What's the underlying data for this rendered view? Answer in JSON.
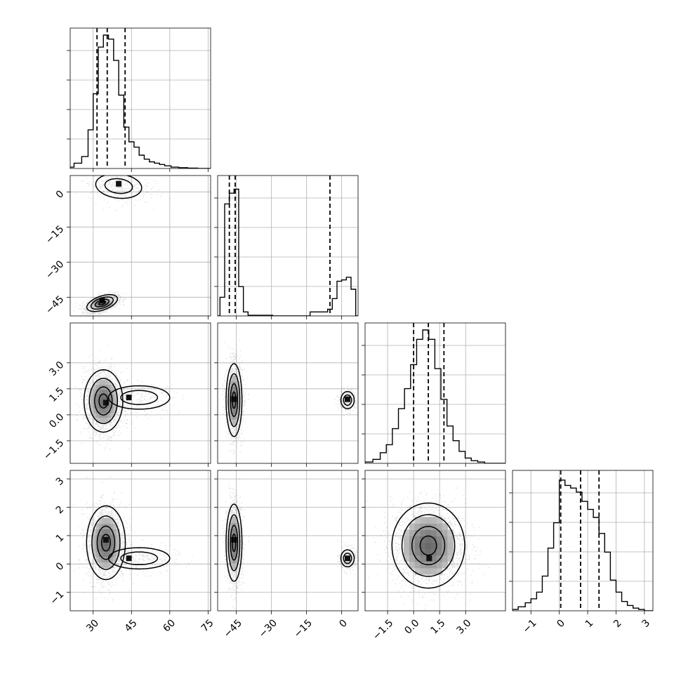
{
  "chart_data": {
    "type": "corner",
    "grid": true,
    "dimensions": 4,
    "params": [
      {
        "range": [
          21,
          76
        ],
        "ticks": [
          30,
          45,
          60,
          75
        ],
        "tick_labels": [
          "30",
          "45",
          "60",
          "75"
        ],
        "quantiles": [
          31.5,
          35.5,
          42.5
        ],
        "hist": [
          [
            21,
            0.01
          ],
          [
            24,
            0.04
          ],
          [
            27,
            0.09
          ],
          [
            29,
            0.29
          ],
          [
            31,
            0.56
          ],
          [
            33,
            0.91
          ],
          [
            35,
            1.0
          ],
          [
            37,
            0.97
          ],
          [
            39,
            0.81
          ],
          [
            41,
            0.55
          ],
          [
            43,
            0.31
          ],
          [
            45,
            0.2
          ],
          [
            47,
            0.16
          ],
          [
            49,
            0.1
          ],
          [
            51,
            0.07
          ],
          [
            53,
            0.05
          ],
          [
            55,
            0.04
          ],
          [
            57,
            0.03
          ],
          [
            59,
            0.02
          ],
          [
            62,
            0.01
          ],
          [
            65,
            0.006
          ],
          [
            69,
            0.003
          ],
          [
            73,
            0.0
          ]
        ]
      },
      {
        "range": [
          -53,
          7
        ],
        "ticks": [
          -45,
          -30,
          -15,
          0
        ],
        "tick_labels": [
          "−45",
          "−30",
          "−15",
          "0"
        ],
        "quantiles": [
          -48,
          -45.5,
          -5
        ],
        "hist": [
          [
            -51,
            0.14
          ],
          [
            -49,
            0.84
          ],
          [
            -47,
            0.92
          ],
          [
            -45,
            0.95
          ],
          [
            -43,
            0.22
          ],
          [
            -41,
            0.03
          ],
          [
            -39,
            0.005
          ],
          [
            -20,
            0.0
          ],
          [
            -7,
            0.03
          ],
          [
            -5,
            0.05
          ],
          [
            -3,
            0.13
          ],
          [
            -1,
            0.26
          ],
          [
            1,
            0.27
          ],
          [
            3,
            0.29
          ],
          [
            5,
            0.2
          ]
        ]
      },
      {
        "range": [
          -2.8,
          5.3
        ],
        "ticks": [
          -1.5,
          0.0,
          1.5,
          3.0
        ],
        "tick_labels": [
          "−1.5",
          "0.0",
          "1.5",
          "3.0"
        ],
        "quantiles": [
          0.0,
          0.85,
          1.75
        ],
        "hist": [
          [
            -2.6,
            0.01
          ],
          [
            -2.1,
            0.03
          ],
          [
            -1.75,
            0.08
          ],
          [
            -1.4,
            0.14
          ],
          [
            -1.05,
            0.26
          ],
          [
            -0.7,
            0.41
          ],
          [
            -0.35,
            0.56
          ],
          [
            0.0,
            0.74
          ],
          [
            0.35,
            0.93
          ],
          [
            0.7,
            1.0
          ],
          [
            1.05,
            0.93
          ],
          [
            1.4,
            0.71
          ],
          [
            1.75,
            0.48
          ],
          [
            2.1,
            0.28
          ],
          [
            2.45,
            0.17
          ],
          [
            2.8,
            0.09
          ],
          [
            3.15,
            0.04
          ],
          [
            3.5,
            0.02
          ],
          [
            3.9,
            0.01
          ]
        ]
      },
      {
        "range": [
          -1.65,
          3.3
        ],
        "ticks": [
          -1,
          0,
          1,
          2,
          3
        ],
        "tick_labels": [
          "−1",
          "0",
          "1",
          "2",
          "3"
        ],
        "quantiles": [
          0.05,
          0.75,
          1.4
        ],
        "hist": [
          [
            -1.6,
            0.01
          ],
          [
            -1.3,
            0.03
          ],
          [
            -1.1,
            0.06
          ],
          [
            -0.9,
            0.09
          ],
          [
            -0.7,
            0.14
          ],
          [
            -0.5,
            0.26
          ],
          [
            -0.3,
            0.47
          ],
          [
            -0.1,
            0.66
          ],
          [
            0.1,
            0.98
          ],
          [
            0.3,
            0.94
          ],
          [
            0.5,
            0.92
          ],
          [
            0.7,
            0.89
          ],
          [
            0.9,
            0.82
          ],
          [
            1.1,
            0.76
          ],
          [
            1.3,
            0.7
          ],
          [
            1.5,
            0.58
          ],
          [
            1.7,
            0.44
          ],
          [
            1.9,
            0.23
          ],
          [
            2.1,
            0.14
          ],
          [
            2.3,
            0.07
          ],
          [
            2.5,
            0.04
          ],
          [
            2.7,
            0.02
          ],
          [
            2.9,
            0.01
          ],
          [
            3.1,
            0.0
          ]
        ]
      }
    ],
    "pairs": [
      {
        "row": 1,
        "col": 0,
        "clusters": [
          {
            "mx": 33.5,
            "my": -47.5,
            "sx": 3.0,
            "sy": 1.8,
            "rho": 0.5,
            "w": 0.84,
            "peak": [
              33.5,
              -46.5
            ]
          },
          {
            "mx": 40,
            "my": 2.5,
            "sx": 6,
            "sy": 3.5,
            "rho": -0.15,
            "w": 0.16,
            "peak": [
              40,
              3.5
            ]
          }
        ]
      },
      {
        "row": 2,
        "col": 0,
        "clusters": [
          {
            "mx": 34,
            "my": 0.8,
            "sx": 3.8,
            "sy": 0.9,
            "rho": 0.0,
            "w": 0.9,
            "peak": [
              35,
              0.7
            ]
          },
          {
            "mx": 48,
            "my": 1.0,
            "sx": 8.0,
            "sy": 0.45,
            "rho": 0.0,
            "w": 0.1,
            "peak": [
              44,
              1.0
            ]
          }
        ]
      },
      {
        "row": 2,
        "col": 1,
        "clusters": [
          {
            "mx": -46,
            "my": 0.85,
            "sx": 1.7,
            "sy": 1.05,
            "rho": 0.0,
            "w": 0.84,
            "peak": [
              -46,
              0.9
            ]
          },
          {
            "mx": 2.5,
            "my": 0.85,
            "sx": 1.9,
            "sy": 0.33,
            "rho": 0.0,
            "w": 0.16,
            "peak": [
              2.5,
              0.9
            ]
          }
        ]
      },
      {
        "row": 3,
        "col": 0,
        "clusters": [
          {
            "mx": 35,
            "my": 0.75,
            "sx": 3.8,
            "sy": 0.65,
            "rho": 0.0,
            "w": 0.9,
            "peak": [
              35,
              0.85
            ]
          },
          {
            "mx": 48,
            "my": 0.2,
            "sx": 8.0,
            "sy": 0.25,
            "rho": 0.0,
            "w": 0.1,
            "peak": [
              44,
              0.2
            ]
          }
        ]
      },
      {
        "row": 3,
        "col": 1,
        "clusters": [
          {
            "mx": -46,
            "my": 0.75,
            "sx": 1.7,
            "sy": 0.68,
            "rho": 0.0,
            "w": 0.84,
            "peak": [
              -46,
              0.85
            ]
          },
          {
            "mx": 2.5,
            "my": 0.2,
            "sx": 1.9,
            "sy": 0.2,
            "rho": 0.0,
            "w": 0.16,
            "peak": [
              2.5,
              0.2
            ]
          }
        ]
      },
      {
        "row": 3,
        "col": 2,
        "clusters": [
          {
            "mx": 0.85,
            "my": 0.65,
            "sx": 1.05,
            "sy": 0.75,
            "rho": 0.0,
            "w": 1.0,
            "peak": [
              0.9,
              0.2
            ]
          }
        ]
      }
    ]
  }
}
